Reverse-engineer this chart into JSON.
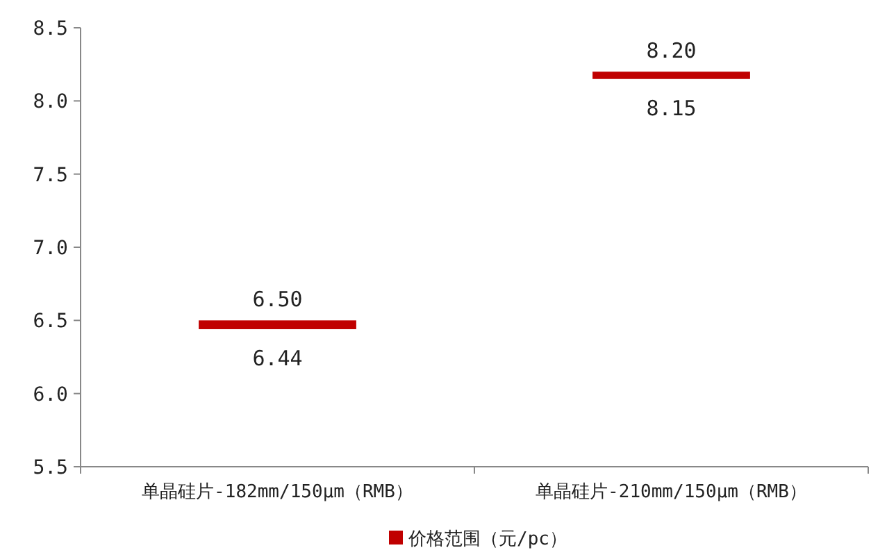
{
  "chart_data": {
    "type": "bar",
    "categories": [
      "单晶硅片-182mm/150μm（RMB）",
      "单晶硅片-210mm/150μm（RMB）"
    ],
    "series": [
      {
        "name": "价格范围（元/pc）",
        "color": "#c00000",
        "values": [
          0.06,
          0.05
        ],
        "base": [
          6.44,
          8.15
        ]
      }
    ],
    "ylim": [
      5.5,
      8.5
    ],
    "yticks": [
      {
        "value": 5.5,
        "label": "5.5"
      },
      {
        "value": 6,
        "label": "6.0"
      },
      {
        "value": 6.5,
        "label": "6.5"
      },
      {
        "value": 7,
        "label": "7.0"
      },
      {
        "value": 7.5,
        "label": "7.5"
      },
      {
        "value": 8,
        "label": "8.0"
      },
      {
        "value": 8.5,
        "label": "8.5"
      }
    ],
    "annotations": [
      "6.50",
      "6.44",
      "8.20",
      "8.15"
    ],
    "legend": "bottom"
  }
}
